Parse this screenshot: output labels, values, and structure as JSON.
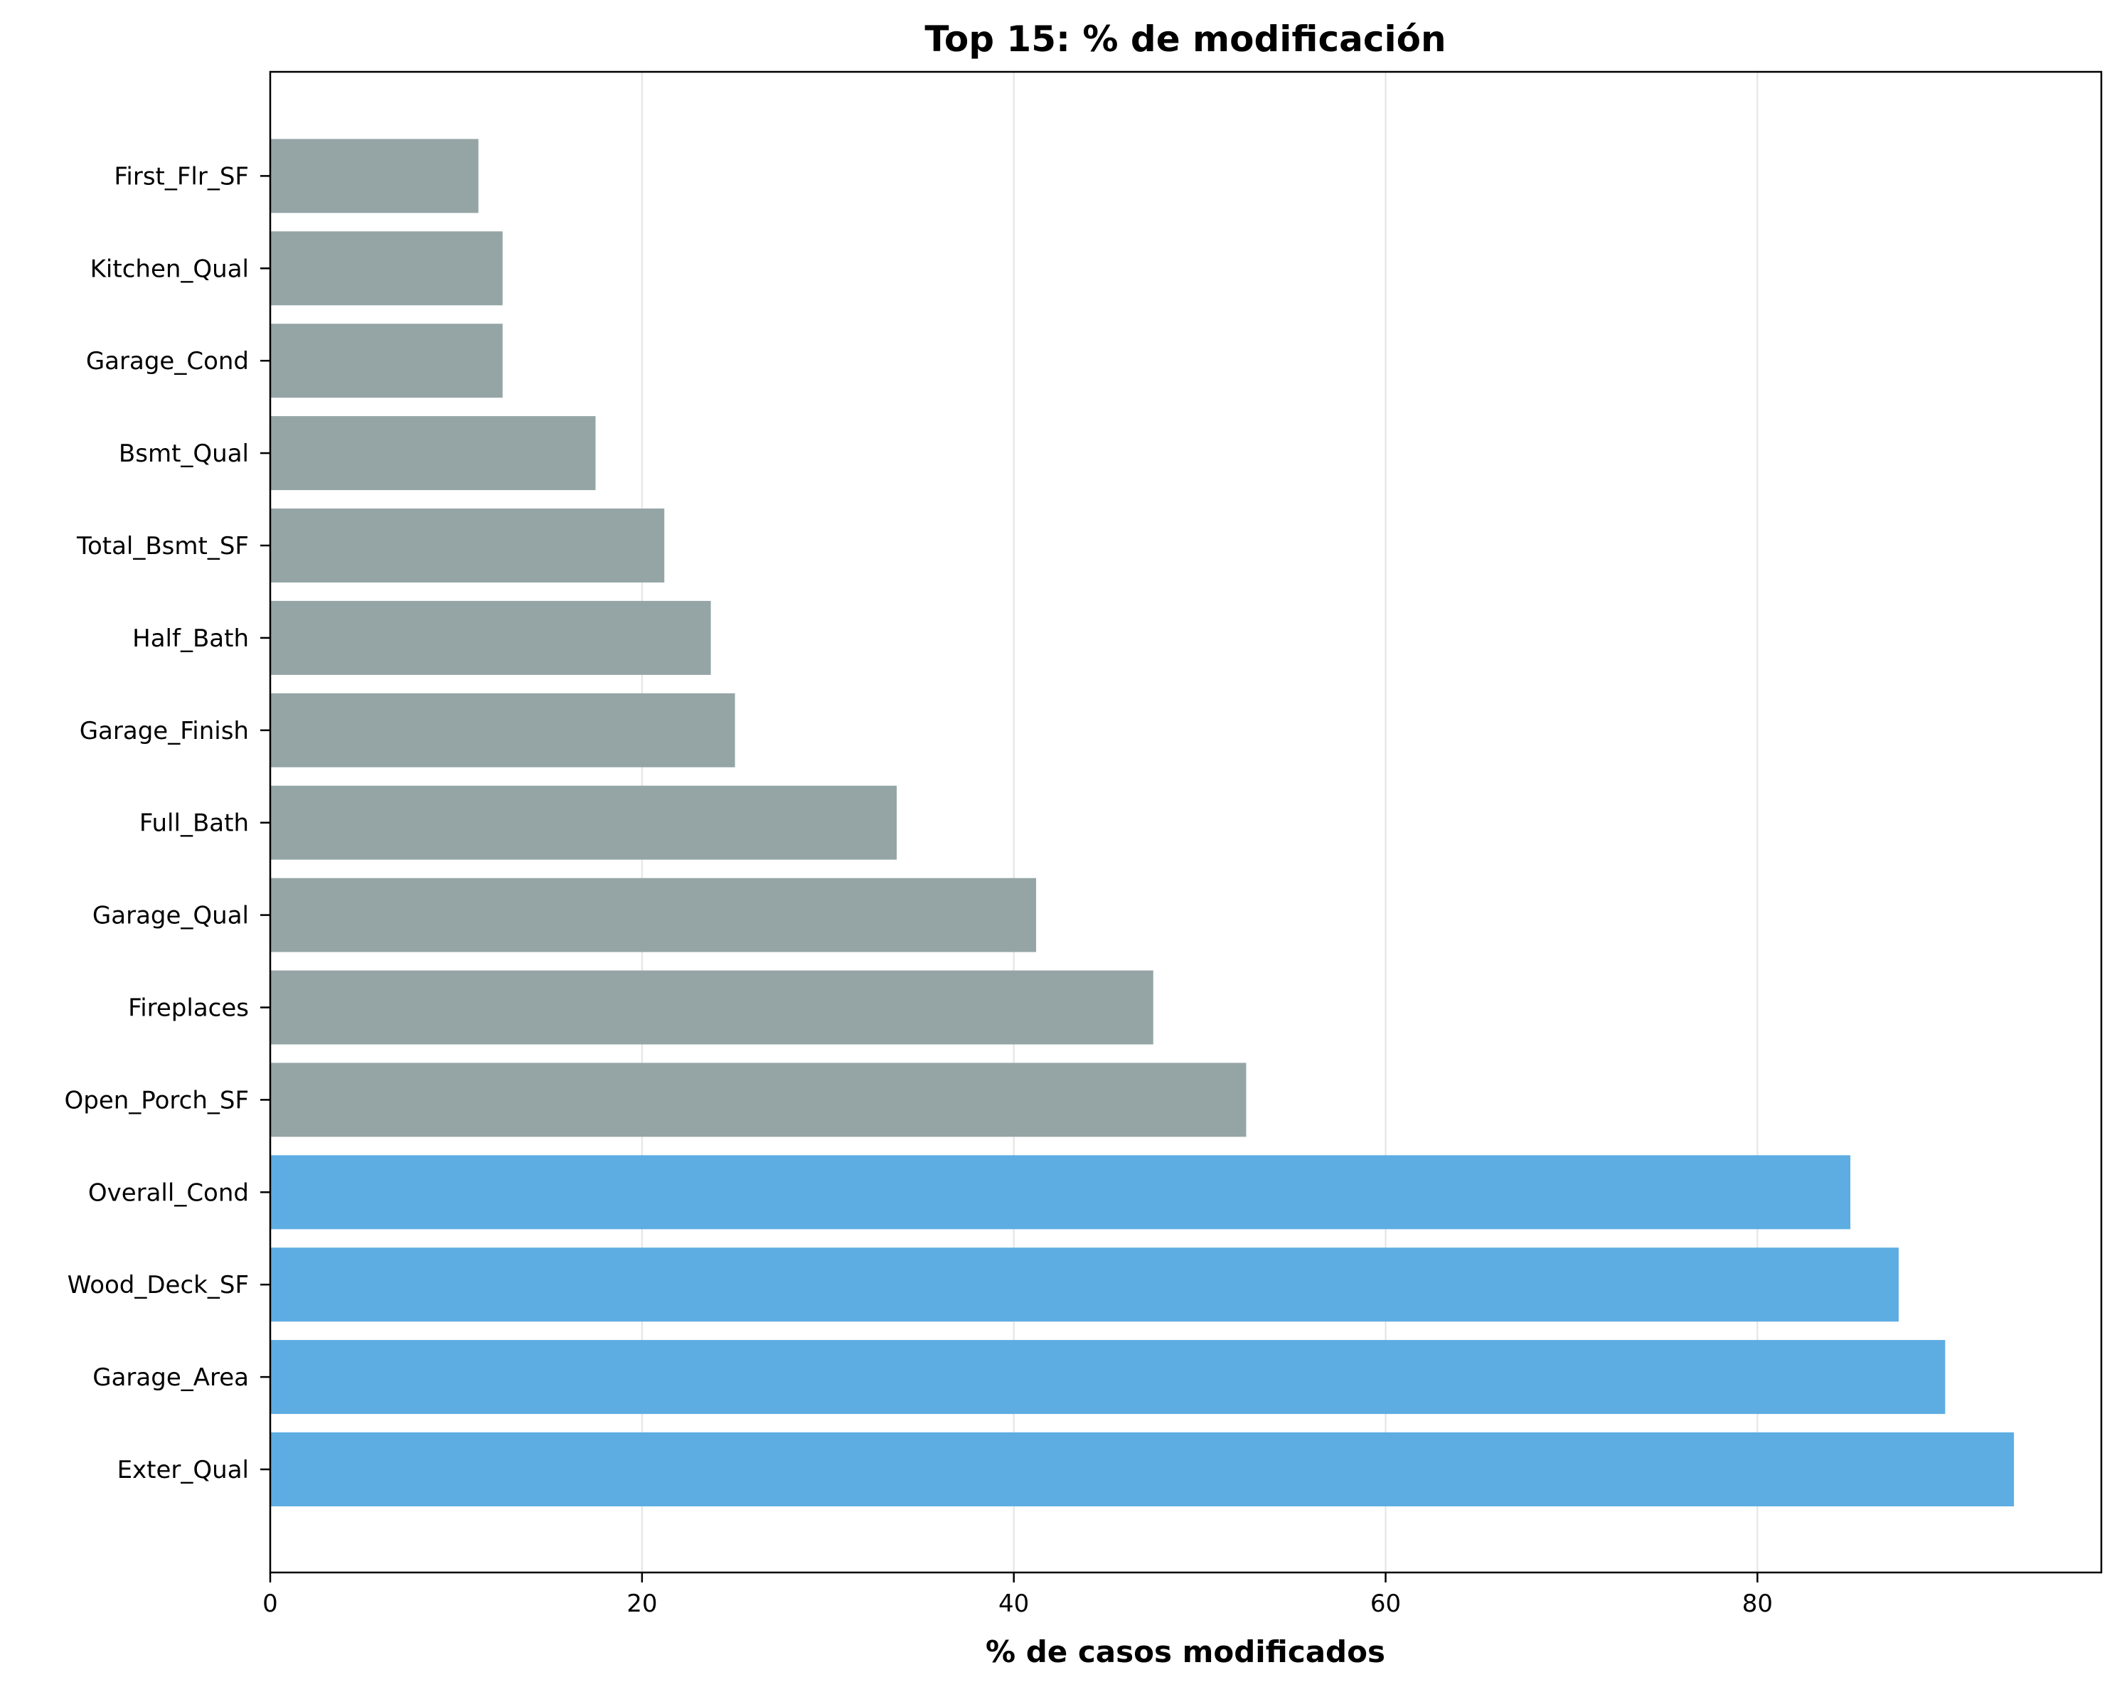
{
  "chart_data": {
    "type": "bar",
    "orientation": "horizontal",
    "title": "Top 15: % de modificación",
    "xlabel": "% de casos modificados",
    "ylabel": "",
    "xlim": [
      0,
      98.5
    ],
    "xticks": [
      0,
      20,
      40,
      60,
      80
    ],
    "xtick_labels": [
      "0",
      "20",
      "40",
      "60",
      "80"
    ],
    "grid": "vertical",
    "categories": [
      "Exter_Qual",
      "Garage_Area",
      "Wood_Deck_SF",
      "Overall_Cond",
      "Open_Porch_SF",
      "Fireplaces",
      "Garage_Qual",
      "Full_Bath",
      "Garage_Finish",
      "Half_Bath",
      "Total_Bsmt_SF",
      "Bsmt_Qual",
      "Garage_Cond",
      "Kitchen_Qual",
      "First_Flr_SF"
    ],
    "values": [
      93.8,
      90.1,
      87.6,
      85.0,
      52.5,
      47.5,
      41.2,
      33.7,
      25.0,
      23.7,
      21.2,
      17.5,
      12.5,
      12.5,
      11.2
    ],
    "bar_colors": [
      "#5dade2",
      "#5dade2",
      "#5dade2",
      "#5dade2",
      "#95a5a6",
      "#95a5a6",
      "#95a5a6",
      "#95a5a6",
      "#95a5a6",
      "#95a5a6",
      "#95a5a6",
      "#95a5a6",
      "#95a5a6",
      "#95a5a6",
      "#95a5a6"
    ]
  }
}
